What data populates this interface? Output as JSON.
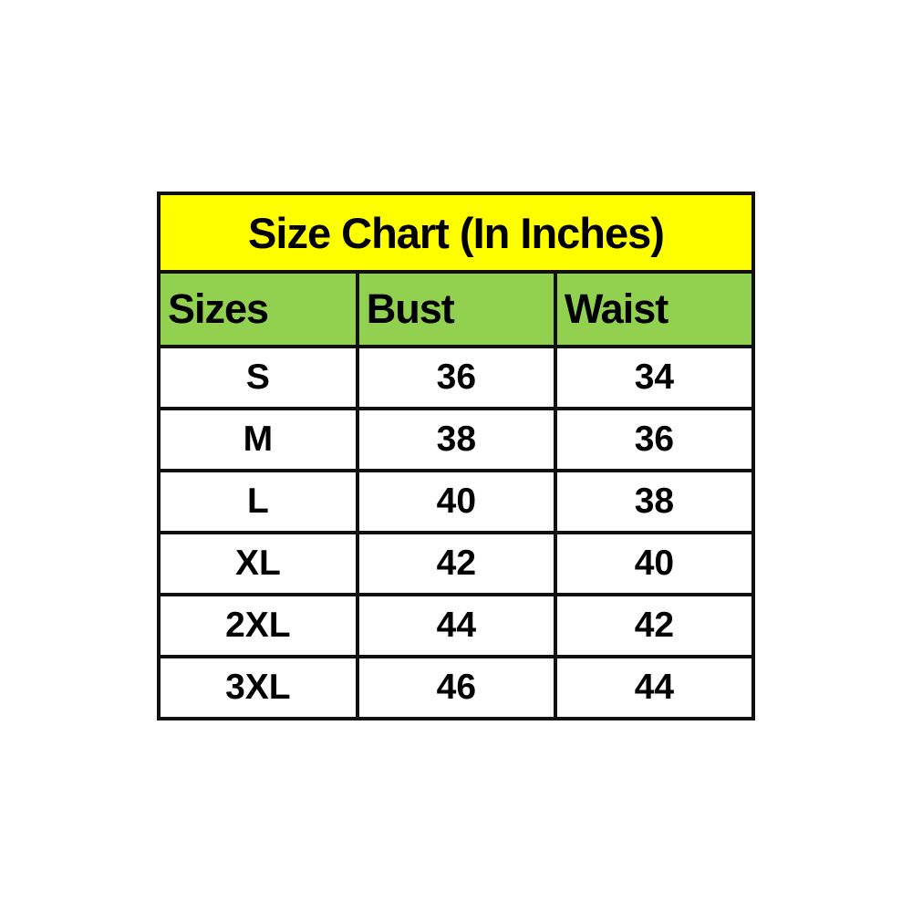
{
  "colors": {
    "title-bg": "#ffff00",
    "header-bg": "#92d050",
    "border": "#111111",
    "text": "#000000",
    "page-bg": "#ffffff"
  },
  "chart_data": {
    "type": "table",
    "title": "Size Chart (In Inches)",
    "columns": [
      "Sizes",
      "Bust",
      "Waist"
    ],
    "rows": [
      [
        "S",
        "36",
        "34"
      ],
      [
        "M",
        "38",
        "36"
      ],
      [
        "L",
        "40",
        "38"
      ],
      [
        "XL",
        "42",
        "40"
      ],
      [
        "2XL",
        "44",
        "42"
      ],
      [
        "3XL",
        "46",
        "44"
      ]
    ],
    "layout": {
      "title_row_background": "#ffff00",
      "header_row_background": "#92d050",
      "data_row_background": "#ffffff",
      "grid": true,
      "header_align": "left",
      "data_align": "center"
    }
  }
}
